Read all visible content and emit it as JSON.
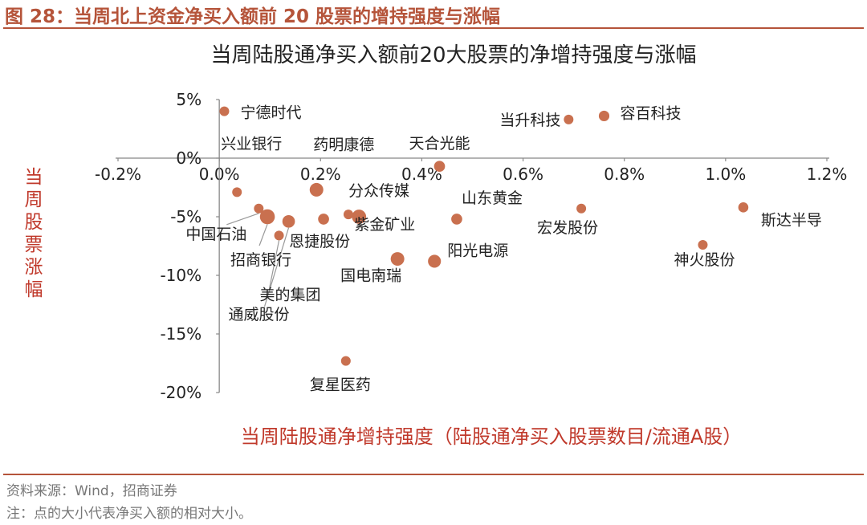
{
  "figure": {
    "title": "图 28：当周北上资金净买入额前 20 股票的增持强度与涨幅",
    "accent_color": "#b5543a"
  },
  "footer": {
    "source": "资料来源：Wind，招商证券",
    "note": "注：点的大小代表净买入额的相对大小。"
  },
  "chart_data": {
    "type": "scatter",
    "title": "当周陆股通净买入额前20大股票的净增持强度与涨幅",
    "xlabel": "当周陆股通净增持强度（陆股通净买入股票数目/流通A股）",
    "ylabel": "当周股票涨幅",
    "xlim": [
      -0.2,
      1.2
    ],
    "ylim": [
      -20,
      5
    ],
    "x_ticks": [
      "-0.2%",
      "0.0%",
      "0.2%",
      "0.4%",
      "0.6%",
      "0.8%",
      "1.0%",
      "1.2%"
    ],
    "y_ticks": [
      "5%",
      "0%",
      "-5%",
      "-10%",
      "-15%",
      "-20%"
    ],
    "grid": false,
    "point_color": "#c9704f",
    "leader_color": "#999999",
    "points": [
      {
        "name": "宁德时代",
        "x": 0.01,
        "y": 4.0,
        "size": 1.0
      },
      {
        "name": "当升科技",
        "x": 0.69,
        "y": 3.3,
        "size": 1.0
      },
      {
        "name": "容百科技",
        "x": 0.76,
        "y": 3.6,
        "size": 1.2
      },
      {
        "name": "兴业银行",
        "x": 0.035,
        "y": -2.9,
        "size": 1.0
      },
      {
        "name": "药明康德",
        "x": 0.192,
        "y": -2.7,
        "size": 2.0
      },
      {
        "name": "天合光能",
        "x": 0.435,
        "y": -0.7,
        "size": 1.3
      },
      {
        "name": "中国石油",
        "x": 0.078,
        "y": -4.3,
        "size": 1.0
      },
      {
        "name": "招商银行",
        "x": 0.095,
        "y": -5.0,
        "size": 2.4
      },
      {
        "name": "美的集团",
        "x": 0.118,
        "y": -6.6,
        "size": 1.0
      },
      {
        "name": "通威股份",
        "x": 0.137,
        "y": -5.4,
        "size": 1.7
      },
      {
        "name": "恩捷股份",
        "x": 0.206,
        "y": -5.2,
        "size": 1.3
      },
      {
        "name": "分众传媒",
        "x": 0.255,
        "y": -4.8,
        "size": 1.0
      },
      {
        "name": "紫金矿业",
        "x": 0.276,
        "y": -5.0,
        "size": 2.2
      },
      {
        "name": "山东黄金",
        "x": 0.469,
        "y": -5.2,
        "size": 1.3
      },
      {
        "name": "宏发股份",
        "x": 0.715,
        "y": -4.3,
        "size": 1.0
      },
      {
        "name": "斯达半导",
        "x": 1.035,
        "y": -4.2,
        "size": 1.1
      },
      {
        "name": "神火股份",
        "x": 0.955,
        "y": -7.4,
        "size": 1.0
      },
      {
        "name": "国电南瑞",
        "x": 0.352,
        "y": -8.6,
        "size": 2.0
      },
      {
        "name": "阳光电源",
        "x": 0.425,
        "y": -8.8,
        "size": 1.8
      },
      {
        "name": "复星医药",
        "x": 0.25,
        "y": -17.3,
        "size": 1.0
      }
    ]
  }
}
